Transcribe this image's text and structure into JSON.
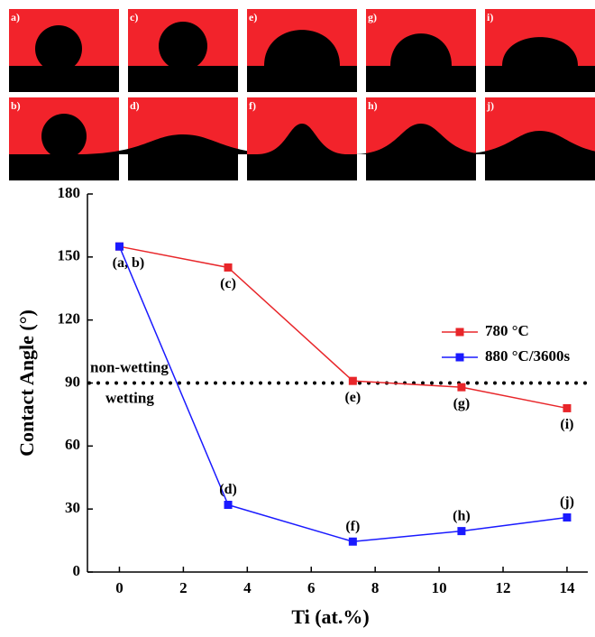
{
  "panels": [
    {
      "label": "a)"
    },
    {
      "label": "c)"
    },
    {
      "label": "e)"
    },
    {
      "label": "g)"
    },
    {
      "label": "i)"
    },
    {
      "label": "b)"
    },
    {
      "label": "d)"
    },
    {
      "label": "f)"
    },
    {
      "label": "h)"
    },
    {
      "label": "j)"
    }
  ],
  "chart_data": {
    "type": "line",
    "x_label": "Ti (at.%)",
    "y_label": "Contact Angle (°)",
    "xlim": [
      -1,
      14.65
    ],
    "xticks": [
      0,
      2,
      4,
      6,
      8,
      10,
      12,
      14
    ],
    "ylim": [
      0,
      180
    ],
    "yticks": [
      0,
      30,
      60,
      90,
      120,
      150,
      180
    ],
    "legend": "right",
    "reference_line": {
      "value": 90,
      "labels": [
        "non-wetting",
        "wetting"
      ]
    },
    "series": [
      {
        "name": "780 °C",
        "color": "#e8262a",
        "x": [
          0,
          3.4,
          7.3,
          10.7,
          14
        ],
        "values": [
          155,
          145,
          91,
          88,
          78
        ],
        "point_labels": [
          "(a, b)",
          "(c)",
          "(e)",
          "(g)",
          "(i)"
        ]
      },
      {
        "name": "880 °C/3600s",
        "color": "#1a1aff",
        "x": [
          0,
          3.4,
          7.3,
          10.7,
          14
        ],
        "values": [
          155,
          32,
          14.5,
          19.5,
          26
        ],
        "point_labels": [
          null,
          "(d)",
          "(f)",
          "(h)",
          "(j)"
        ]
      }
    ]
  }
}
